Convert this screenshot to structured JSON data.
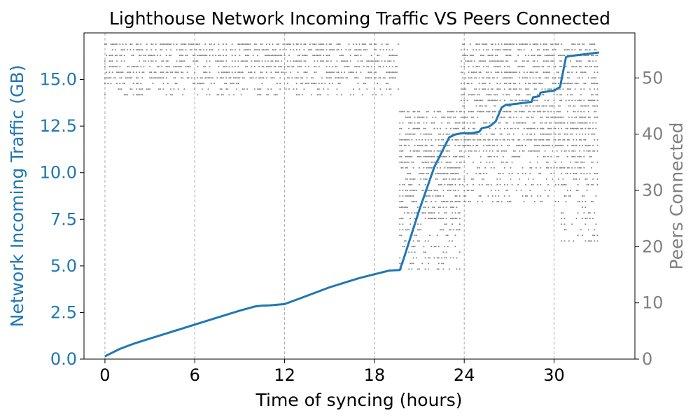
{
  "chart_data": {
    "type": "line",
    "title": "Lighthouse Network Incoming Traffic VS Peers Connected",
    "xlabel": "Time of syncing (hours)",
    "ylabel_left": "Network Incoming Traffic (GB)",
    "ylabel_right": "Peers Connected",
    "xlim": [
      -1.4,
      35.4
    ],
    "ylim_left": [
      0,
      17.5
    ],
    "ylim_right": [
      0,
      58
    ],
    "x_ticks": [
      0,
      6,
      12,
      18,
      24,
      30
    ],
    "x_tick_labels": [
      "0",
      "6",
      "12",
      "18",
      "24",
      "30"
    ],
    "y_left_ticks": [
      0,
      2.5,
      5,
      7.5,
      10,
      12.5,
      15
    ],
    "y_left_tick_labels": [
      "0.0",
      "2.5",
      "5.0",
      "7.5",
      "10.0",
      "12.5",
      "15.0"
    ],
    "y_right_ticks": [
      0,
      10,
      20,
      30,
      40,
      50
    ],
    "y_right_tick_labels": [
      "0",
      "10",
      "20",
      "30",
      "40",
      "50"
    ],
    "grid": "vertical dashed at x ticks",
    "colors": {
      "traffic": "#1f77b4",
      "peers": "#808080"
    },
    "series": [
      {
        "axis": "left",
        "style": "line",
        "x": [
          0,
          0.5,
          1,
          2,
          3,
          4,
          5,
          6,
          7,
          8,
          9,
          10,
          10.5,
          11,
          12,
          13,
          14,
          15,
          16,
          17,
          18,
          19,
          19.7,
          20,
          21,
          22,
          23,
          23.4,
          23.7,
          24,
          24.5,
          25,
          25.2,
          25.6,
          25.8,
          26.1,
          26.5,
          26.8,
          27,
          27.5,
          28,
          28.5,
          28.6,
          29,
          29.1,
          29.5,
          30,
          30.4,
          30.8,
          31,
          32,
          33
        ],
        "y": [
          0.15,
          0.35,
          0.55,
          0.85,
          1.1,
          1.35,
          1.6,
          1.85,
          2.1,
          2.35,
          2.6,
          2.82,
          2.87,
          2.88,
          2.95,
          3.25,
          3.55,
          3.85,
          4.1,
          4.35,
          4.55,
          4.75,
          4.78,
          5.5,
          8.0,
          10.3,
          11.9,
          12.05,
          12.1,
          12.12,
          12.12,
          12.2,
          12.4,
          12.45,
          12.55,
          12.75,
          13.5,
          13.65,
          13.65,
          13.7,
          13.75,
          13.8,
          14.05,
          14.1,
          14.3,
          14.35,
          14.4,
          14.6,
          16.2,
          16.25,
          16.35,
          16.45
        ]
      },
      {
        "axis": "right",
        "style": "scatter",
        "segments": [
          {
            "x": [
              0,
              19.7
            ],
            "peers_min": 47,
            "peers_max": 56
          },
          {
            "x": [
              19.7,
              23.8
            ],
            "peers_min": 16,
            "peers_max": 44
          },
          {
            "x": [
              23.8,
              30.5
            ],
            "peers_min": 28,
            "peers_max": 56
          },
          {
            "x": [
              30.5,
              33
            ],
            "peers_min": 21,
            "peers_max": 56
          }
        ]
      }
    ]
  }
}
